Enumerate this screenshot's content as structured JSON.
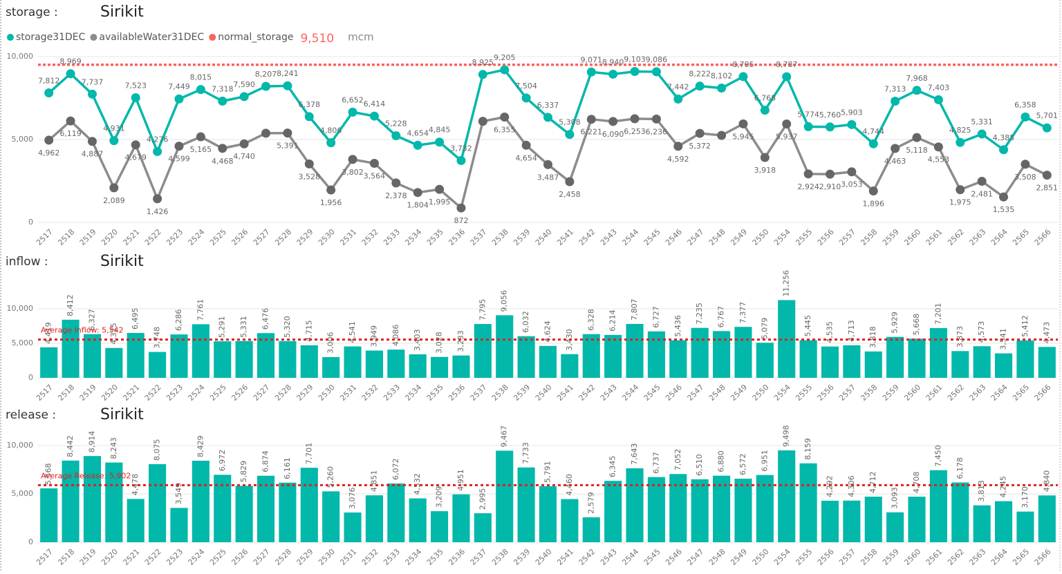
{
  "chart_data": [
    {
      "type": "line",
      "section": "storage :",
      "title": "Sirikit",
      "categories": [
        "2517",
        "2518",
        "2519",
        "2520",
        "2521",
        "2522",
        "2523",
        "2524",
        "2525",
        "2526",
        "2527",
        "2528",
        "2529",
        "2530",
        "2531",
        "2532",
        "2533",
        "2534",
        "2535",
        "2536",
        "2537",
        "2538",
        "2539",
        "2540",
        "2541",
        "2542",
        "2543",
        "2544",
        "2545",
        "2546",
        "2547",
        "2548",
        "2549",
        "2550",
        "2554",
        "2555",
        "2556",
        "2557",
        "2558",
        "2559",
        "2560",
        "2561",
        "2562",
        "2563",
        "2564",
        "2565",
        "2566"
      ],
      "series": [
        {
          "name": "storage31DEC",
          "color": "#01B8AA",
          "values": [
            7812,
            8969,
            7737,
            4931,
            7523,
            4276,
            7449,
            8015,
            7318,
            7590,
            8207,
            8241,
            6378,
            4806,
            6652,
            6414,
            5228,
            4654,
            4845,
            3732,
            8925,
            9205,
            7504,
            6337,
            5308,
            9071,
            8940,
            9103,
            9086,
            7442,
            8222,
            8102,
            8795,
            6768,
            8787,
            5774,
            5760,
            5903,
            4744,
            7313,
            7968,
            7403,
            4825,
            5331,
            4385,
            6358,
            5701
          ],
          "value_labels": [
            "7,812",
            "8,969",
            "7,737",
            "4,931",
            "7,523",
            "4,276",
            "7,449",
            "8,015",
            "7,318",
            "7,590",
            "8,207",
            "8,241",
            "6,378",
            "4,806",
            "6,652",
            "6,414",
            "5,228",
            "4,654",
            "4,845",
            "3,732",
            "8,925",
            "9,205",
            "7,504",
            "6,337",
            "5,308",
            "9,071",
            "8,940",
            "9,103",
            "9,086",
            "7,442",
            "8,222",
            "8,102",
            "8,795",
            "6,768",
            "8,787",
            "5,774",
            "5,760",
            "5,903",
            "4,744",
            "7,313",
            "7,968",
            "7,403",
            "4,825",
            "5,331",
            "4,385",
            "6,358",
            "5,701"
          ]
        },
        {
          "name": "availableWater31DEC",
          "color": "#8C8C8C",
          "values": [
            4962,
            6119,
            4887,
            2089,
            4679,
            1426,
            4599,
            5165,
            4468,
            4740,
            5380,
            5391,
            3528,
            1956,
            3802,
            3564,
            2378,
            1804,
            1995,
            872,
            6100,
            6355,
            4654,
            3487,
            2458,
            6221,
            6090,
            6253,
            6236,
            4592,
            5372,
            5250,
            5945,
            3918,
            5937,
            2924,
            2910,
            3053,
            1896,
            4463,
            5118,
            4553,
            1975,
            2481,
            1535,
            3508,
            2851
          ],
          "value_labels": [
            "4,962",
            "6,119",
            "4,887",
            "2,089",
            "4,679",
            "1,426",
            "4,599",
            "5,165",
            "4,468",
            "4,740",
            null,
            "5,391",
            "3,528",
            "1,956",
            "3,802",
            "3,564",
            "2,378",
            "1,804",
            "1,995",
            "872",
            null,
            "6,355",
            "4,654",
            "3,487",
            "2,458",
            "6,221",
            "6,090",
            "6,253",
            "6,236",
            "4,592",
            "5,372",
            null,
            "5,945",
            "3,918",
            "5,937",
            "2,924",
            "2,910",
            "3,053",
            "1,896",
            "4,463",
            "5,118",
            "4,553",
            "1,975",
            "2,481",
            "1,535",
            "3,508",
            "2,851"
          ]
        }
      ],
      "reference_line": {
        "name": "normal_storage",
        "color": "#FD625E",
        "value": 9510,
        "label": "9,510",
        "unit": "mcm"
      },
      "ylim": [
        0,
        10500
      ],
      "yticks": [
        0,
        {
          "value": 5000,
          "label": "5,000"
        },
        {
          "value": 10000,
          "label": "10,000"
        }
      ],
      "grid": true
    },
    {
      "type": "bar",
      "section": "inflow :",
      "title": "Sirikit",
      "color": "#01B8AA",
      "categories": [
        "2517",
        "2518",
        "2519",
        "2520",
        "2521",
        "2522",
        "2523",
        "2524",
        "2525",
        "2526",
        "2527",
        "2528",
        "2529",
        "2530",
        "2531",
        "2532",
        "2533",
        "2534",
        "2535",
        "2536",
        "2537",
        "2538",
        "2539",
        "2540",
        "2541",
        "2542",
        "2543",
        "2544",
        "2545",
        "2546",
        "2547",
        "2548",
        "2549",
        "2550",
        "2554",
        "2555",
        "2556",
        "2557",
        "2558",
        "2559",
        "2560",
        "2561",
        "2562",
        "2563",
        "2564",
        "2565",
        "2566"
      ],
      "values": [
        4419,
        8412,
        6327,
        4325,
        6495,
        3748,
        6286,
        7761,
        5291,
        5331,
        6476,
        5320,
        4715,
        3006,
        4541,
        3949,
        4086,
        3403,
        3028,
        3233,
        7795,
        9056,
        6032,
        4624,
        3430,
        6328,
        6214,
        7807,
        6727,
        5436,
        7235,
        6767,
        7377,
        5079,
        11256,
        5445,
        4535,
        4713,
        3818,
        5929,
        5668,
        7201,
        3873,
        4573,
        3541,
        5412,
        4473
      ],
      "value_labels": [
        "4,419",
        "8,412",
        "6,327",
        "4,325",
        "6,495",
        "3,748",
        "6,286",
        "7,761",
        "5,291",
        "5,331",
        "6,476",
        "5,320",
        "4,715",
        "3,006",
        "4,541",
        "3,949",
        "4,086",
        "3,403",
        "3,028",
        "3,233",
        "7,795",
        "9,056",
        "6,032",
        "4,624",
        "3,430",
        "6,328",
        "6,214",
        "7,807",
        "6,727",
        "5,436",
        "7,235",
        "6,767",
        "7,377",
        "5,079",
        "11,256",
        "5,445",
        "4,535",
        "4,713",
        "3,818",
        "5,929",
        "5,668",
        "7,201",
        "3,873",
        "4,573",
        "3,541",
        "5,412",
        "4,473"
      ],
      "average": {
        "value": 5542,
        "label": "Average Inflow: 5,542",
        "color": "#E02020"
      },
      "ylim": [
        0,
        11500
      ],
      "yticks": [
        0,
        {
          "value": 5000,
          "label": "5,000"
        },
        {
          "value": 10000,
          "label": "10,000"
        }
      ],
      "grid": true
    },
    {
      "type": "bar",
      "section": "release :",
      "title": "Sirikit",
      "color": "#01B8AA",
      "categories": [
        "2517",
        "2518",
        "2519",
        "2520",
        "2521",
        "2522",
        "2523",
        "2524",
        "2525",
        "2526",
        "2527",
        "2528",
        "2529",
        "2530",
        "2531",
        "2532",
        "2533",
        "2534",
        "2535",
        "2536",
        "2537",
        "2538",
        "2539",
        "2540",
        "2541",
        "2542",
        "2543",
        "2544",
        "2545",
        "2546",
        "2547",
        "2548",
        "2549",
        "2550",
        "2554",
        "2555",
        "2556",
        "2557",
        "2558",
        "2559",
        "2560",
        "2561",
        "2562",
        "2563",
        "2564",
        "2565",
        "2566"
      ],
      "values": [
        5568,
        8442,
        8914,
        8243,
        4478,
        8075,
        3549,
        8429,
        6972,
        5829,
        6874,
        6161,
        7701,
        5260,
        3076,
        4851,
        6072,
        4532,
        3209,
        4951,
        2995,
        9467,
        7733,
        5791,
        4460,
        2579,
        6345,
        7643,
        6737,
        7052,
        6510,
        6880,
        6572,
        6951,
        9498,
        8159,
        4292,
        4306,
        4712,
        3093,
        4708,
        7450,
        6178,
        3813,
        4245,
        3170,
        4840
      ],
      "value_labels": [
        "5,568",
        "8,442",
        "8,914",
        "8,243",
        "4,478",
        "8,075",
        "3,549",
        "8,429",
        "6,972",
        "5,829",
        "6,874",
        "6,161",
        "7,701",
        "5,260",
        "3,076",
        "4,851",
        "6,072",
        "4,532",
        "3,209",
        "4,951",
        "2,995",
        "9,467",
        "7,733",
        "5,791",
        "4,460",
        "2,579",
        "6,345",
        "7,643",
        "6,737",
        "7,052",
        "6,510",
        "6,880",
        "6,572",
        "6,951",
        "9,498",
        "8,159",
        "4,292",
        "4,306",
        "4,712",
        "3,093",
        "4,708",
        "7,450",
        "6,178",
        "3,813",
        "4,245",
        "3,170",
        "4,840"
      ],
      "average": {
        "value": 5902,
        "label": "Average Release: 5,902",
        "color": "#E02020"
      },
      "ylim": [
        0,
        10500
      ],
      "yticks": [
        0,
        {
          "value": 5000,
          "label": "5,000"
        },
        {
          "value": 10000,
          "label": "10,000"
        }
      ],
      "grid": true
    }
  ]
}
